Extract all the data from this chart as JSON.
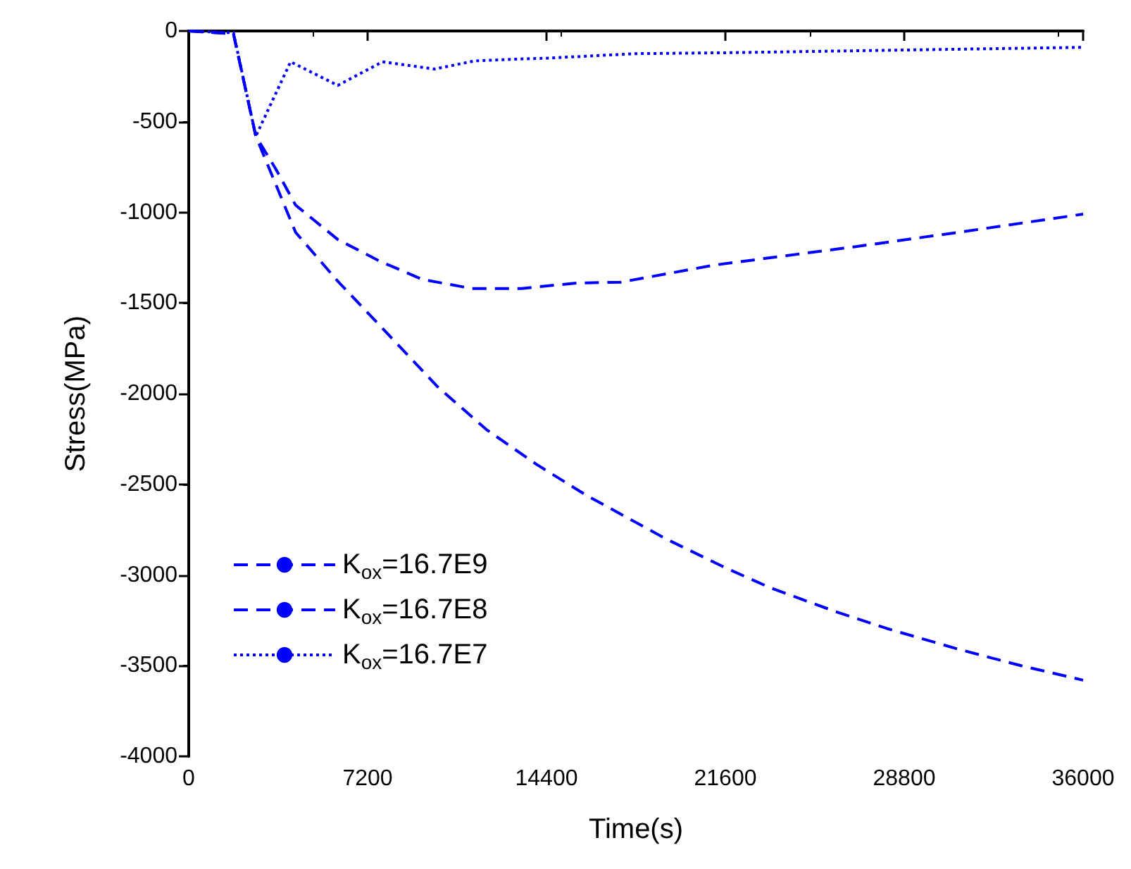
{
  "chart_data": {
    "type": "line",
    "xlabel": "Time(s)",
    "ylabel": "Stress(MPa)",
    "xlim": [
      0,
      36000
    ],
    "xticks": [
      0,
      7200,
      14400,
      21600,
      28800,
      36000
    ],
    "ylim": [
      -4000,
      0
    ],
    "yticks": [
      -4000,
      -3500,
      -3000,
      -2500,
      -2000,
      -1500,
      -1000,
      -500,
      0
    ],
    "grid": false,
    "legend": "bottom left",
    "marker": "none",
    "series": [
      {
        "name": "K$_{ox}$=16.7E9",
        "color": "#0000ff",
        "line_style": "dashed",
        "x": [
          0,
          1800,
          2700,
          4300,
          6000,
          7700,
          10000,
          12000,
          14000,
          16000,
          19200,
          21600,
          23400,
          26000,
          28100,
          31000,
          33500,
          36000
        ],
        "values": [
          0,
          -15,
          -580,
          -1110,
          -1380,
          -1625,
          -1960,
          -2200,
          -2390,
          -2560,
          -2800,
          -2960,
          -3070,
          -3200,
          -3295,
          -3410,
          -3500,
          -3580
        ]
      },
      {
        "name": "K$_{ox}$=16.7E8",
        "color": "#0000ff",
        "line_style": "dashed",
        "x": [
          0,
          1800,
          2700,
          3500,
          4300,
          6000,
          7700,
          9400,
          11400,
          13400,
          15600,
          17400,
          21200,
          26800,
          31000,
          36000
        ],
        "values": [
          0,
          -15,
          -580,
          -760,
          -960,
          -1150,
          -1270,
          -1370,
          -1420,
          -1420,
          -1390,
          -1385,
          -1290,
          -1190,
          -1110,
          -1010
        ]
      },
      {
        "name": "K$_{ox}$=16.7E7",
        "color": "#0000ff",
        "line_style": "dotted",
        "x": [
          0,
          1800,
          2700,
          4100,
          6000,
          7800,
          9900,
          11500,
          13200,
          14400,
          18000,
          21600,
          28800,
          36000
        ],
        "values": [
          0,
          -10,
          -580,
          -170,
          -300,
          -170,
          -210,
          -165,
          -155,
          -150,
          -125,
          -120,
          -105,
          -90
        ]
      }
    ]
  }
}
